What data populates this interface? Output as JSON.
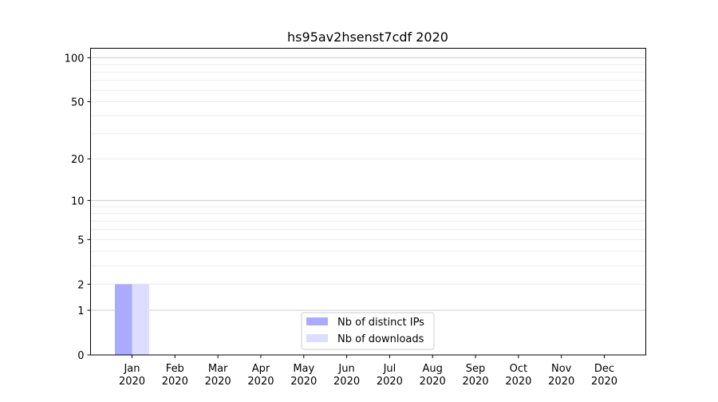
{
  "chart_data": {
    "type": "bar",
    "title": "hs95av2hsenst7cdf 2020",
    "xlabel": "",
    "ylabel": "",
    "y_scale": "log(1+y)",
    "ylim": [
      0,
      116
    ],
    "y_ticks": [
      0,
      1,
      2,
      5,
      10,
      20,
      50,
      100
    ],
    "grid": true,
    "categories": [
      "Jan\n2020",
      "Feb\n2020",
      "Mar\n2020",
      "Apr\n2020",
      "May\n2020",
      "Jun\n2020",
      "Jul\n2020",
      "Aug\n2020",
      "Sep\n2020",
      "Oct\n2020",
      "Nov\n2020",
      "Dec\n2020"
    ],
    "series": [
      {
        "name": "Nb of distinct IPs",
        "color": "#aaaaff",
        "values": [
          2,
          0,
          0,
          0,
          0,
          0,
          0,
          0,
          0,
          0,
          0,
          0
        ]
      },
      {
        "name": "Nb of downloads",
        "color": "#ddddff",
        "values": [
          2,
          0,
          0,
          0,
          0,
          0,
          0,
          0,
          0,
          0,
          0,
          0
        ]
      }
    ],
    "legend_position": "bottom-center"
  }
}
